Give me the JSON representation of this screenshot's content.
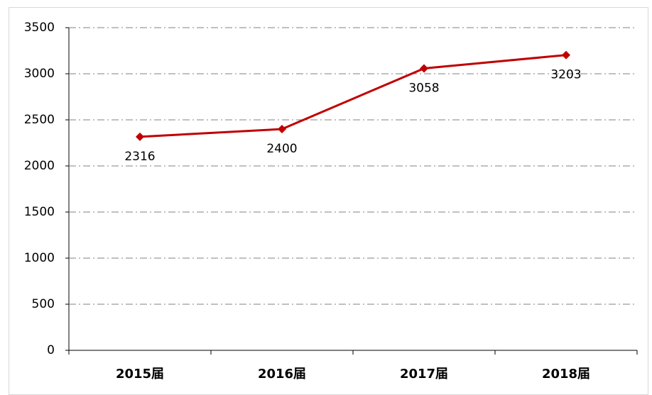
{
  "chart_data": {
    "type": "line",
    "categories": [
      "2015届",
      "2016届",
      "2017届",
      "2018届"
    ],
    "series": [
      {
        "color": "#c00000",
        "values": [
          2316,
          2400,
          3058,
          3203
        ]
      }
    ],
    "ylim": [
      0,
      3500
    ],
    "yticks": [
      0,
      500,
      1000,
      1500,
      2000,
      2500,
      3000,
      3500
    ],
    "grid": true
  }
}
